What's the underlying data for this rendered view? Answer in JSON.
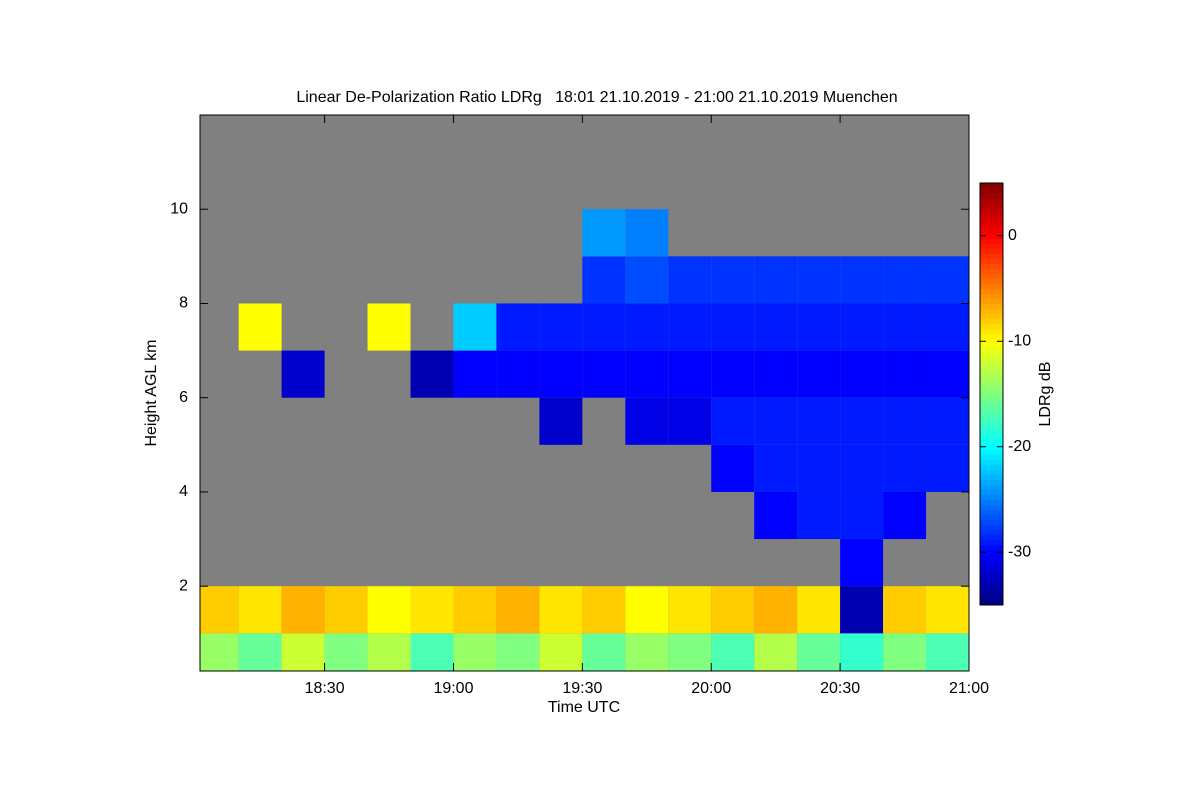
{
  "chart_data": {
    "type": "heatmap",
    "title": "Linear De-Polarization Ratio LDRg   18:01 21.10.2019 - 21:00 21.10.2019 Muenchen",
    "xlabel": "Time UTC",
    "ylabel": "Height AGL km",
    "colorbar_label": "LDRg dB",
    "colormap": "jet",
    "background": "#808080",
    "xlim": [
      1081,
      1260
    ],
    "xticks": [
      {
        "value": 1110,
        "label": "18:30"
      },
      {
        "value": 1140,
        "label": "19:00"
      },
      {
        "value": 1170,
        "label": "19:30"
      },
      {
        "value": 1200,
        "label": "20:00"
      },
      {
        "value": 1230,
        "label": "20:30"
      },
      {
        "value": 1260,
        "label": "21:00"
      }
    ],
    "ylim": [
      0.2,
      12
    ],
    "yticks": [
      2,
      4,
      6,
      8,
      10
    ],
    "zlim": [
      -35,
      5
    ],
    "zticks": [
      0,
      -10,
      -20,
      -30
    ],
    "x_edges": [
      1081,
      1090,
      1100,
      1110,
      1120,
      1130,
      1140,
      1150,
      1160,
      1170,
      1180,
      1190,
      1200,
      1210,
      1220,
      1230,
      1240,
      1250,
      1260
    ],
    "y_edges": [
      0.2,
      1,
      2,
      3,
      4,
      5,
      6,
      7,
      8,
      9,
      10,
      11,
      12
    ],
    "z": [
      [
        -14,
        -16,
        -12,
        -15,
        -13,
        -17,
        -14,
        -15,
        -12,
        -16,
        -14,
        -15,
        -17,
        -13,
        -16,
        -18,
        -15,
        -17
      ],
      [
        -8,
        -9,
        -7,
        -8,
        -10,
        -9,
        -8,
        -7,
        -9,
        -8,
        -10,
        -9,
        -8,
        -7,
        -9,
        -33,
        -8,
        -9
      ],
      [
        null,
        null,
        null,
        null,
        null,
        null,
        null,
        null,
        null,
        null,
        null,
        null,
        null,
        null,
        null,
        -30,
        null,
        null
      ],
      [
        null,
        null,
        null,
        null,
        null,
        null,
        null,
        null,
        null,
        null,
        null,
        null,
        null,
        -30,
        -29,
        -29,
        -30,
        null
      ],
      [
        null,
        null,
        null,
        null,
        null,
        null,
        null,
        null,
        null,
        null,
        null,
        null,
        -30,
        -29,
        -29,
        -29,
        -29,
        -29
      ],
      [
        null,
        null,
        null,
        null,
        null,
        null,
        null,
        null,
        -32,
        null,
        -31,
        -31,
        -29,
        -29,
        -29,
        -29,
        -29,
        -29
      ],
      [
        null,
        null,
        -32,
        null,
        null,
        -33,
        -30,
        -30,
        -30,
        -30,
        -30,
        -30,
        -30,
        -30,
        -30,
        -30,
        -30,
        -30
      ],
      [
        null,
        -10,
        null,
        null,
        -10,
        null,
        -22,
        -29,
        -29,
        -29,
        -29,
        -29,
        -29,
        -29,
        -29,
        -29,
        -29,
        -29
      ],
      [
        null,
        null,
        null,
        null,
        null,
        null,
        null,
        null,
        null,
        -28,
        -27,
        -28,
        -28,
        -28,
        -28,
        -28,
        -28,
        -28
      ],
      [
        null,
        null,
        null,
        null,
        null,
        null,
        null,
        null,
        null,
        -24,
        -25,
        null,
        null,
        null,
        null,
        null,
        null,
        null
      ],
      [
        null,
        null,
        null,
        null,
        null,
        null,
        null,
        null,
        null,
        null,
        null,
        null,
        null,
        null,
        null,
        null,
        null,
        null
      ],
      [
        null,
        null,
        null,
        null,
        null,
        null,
        null,
        null,
        null,
        null,
        null,
        null,
        null,
        null,
        null,
        null,
        null,
        null
      ]
    ]
  }
}
